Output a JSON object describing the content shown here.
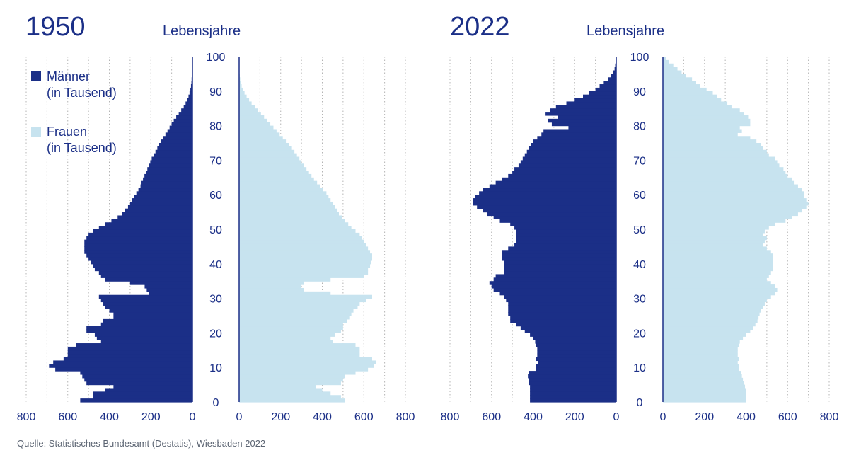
{
  "chart_data": [
    {
      "type": "bar",
      "title": "1950",
      "age_axis_label": "Lebensjahre",
      "x_unit": "in Tausend",
      "age_ticks": [
        0,
        10,
        20,
        30,
        40,
        50,
        60,
        70,
        80,
        90,
        100
      ],
      "male_ticks": [
        800,
        600,
        400,
        200,
        0
      ],
      "female_ticks": [
        0,
        200,
        400,
        600,
        800
      ],
      "xlim": [
        0,
        800
      ],
      "series": [
        {
          "name": "Männer",
          "ages": [
            0,
            1,
            2,
            3,
            4,
            5,
            6,
            7,
            8,
            9,
            10,
            11,
            12,
            13,
            14,
            15,
            16,
            17,
            18,
            19,
            20,
            21,
            22,
            23,
            24,
            25,
            26,
            27,
            28,
            29,
            30,
            31,
            32,
            33,
            34,
            35,
            36,
            37,
            38,
            39,
            40,
            41,
            42,
            43,
            44,
            45,
            46,
            47,
            48,
            49,
            50,
            51,
            52,
            53,
            54,
            55,
            56,
            57,
            58,
            59,
            60,
            61,
            62,
            63,
            64,
            65,
            66,
            67,
            68,
            69,
            70,
            71,
            72,
            73,
            74,
            75,
            76,
            77,
            78,
            79,
            80,
            81,
            82,
            83,
            84,
            85,
            86,
            87,
            88,
            89,
            90,
            91,
            92,
            93,
            94,
            95,
            96,
            97,
            98,
            99
          ],
          "values": [
            540,
            480,
            480,
            420,
            380,
            510,
            520,
            530,
            540,
            660,
            690,
            670,
            620,
            600,
            600,
            600,
            560,
            440,
            460,
            470,
            510,
            510,
            440,
            430,
            380,
            380,
            400,
            420,
            430,
            440,
            450,
            210,
            220,
            230,
            300,
            420,
            440,
            450,
            470,
            480,
            490,
            500,
            510,
            520,
            520,
            520,
            520,
            510,
            500,
            480,
            450,
            420,
            390,
            360,
            340,
            325,
            310,
            300,
            290,
            280,
            270,
            260,
            250,
            245,
            238,
            231,
            224,
            217,
            210,
            203,
            196,
            187,
            178,
            169,
            160,
            150,
            140,
            130,
            120,
            110,
            100,
            90,
            78,
            66,
            54,
            42,
            33,
            25,
            19,
            14,
            10,
            7,
            5,
            4,
            3,
            2,
            2,
            1,
            1,
            1
          ]
        },
        {
          "name": "Frauen",
          "ages": [
            0,
            1,
            2,
            3,
            4,
            5,
            6,
            7,
            8,
            9,
            10,
            11,
            12,
            13,
            14,
            15,
            16,
            17,
            18,
            19,
            20,
            21,
            22,
            23,
            24,
            25,
            26,
            27,
            28,
            29,
            30,
            31,
            32,
            33,
            34,
            35,
            36,
            37,
            38,
            39,
            40,
            41,
            42,
            43,
            44,
            45,
            46,
            47,
            48,
            49,
            50,
            51,
            52,
            53,
            54,
            55,
            56,
            57,
            58,
            59,
            60,
            61,
            62,
            63,
            64,
            65,
            66,
            67,
            68,
            69,
            70,
            71,
            72,
            73,
            74,
            75,
            76,
            77,
            78,
            79,
            80,
            81,
            82,
            83,
            84,
            85,
            86,
            87,
            88,
            89,
            90,
            91,
            92,
            93,
            94,
            95,
            96,
            97,
            98,
            99
          ],
          "values": [
            510,
            490,
            440,
            400,
            370,
            490,
            500,
            510,
            560,
            620,
            650,
            660,
            640,
            580,
            580,
            580,
            560,
            450,
            440,
            460,
            490,
            500,
            500,
            520,
            530,
            540,
            550,
            570,
            580,
            610,
            640,
            440,
            310,
            300,
            310,
            440,
            600,
            620,
            620,
            630,
            635,
            640,
            640,
            630,
            620,
            610,
            600,
            590,
            580,
            560,
            540,
            525,
            510,
            495,
            480,
            470,
            460,
            450,
            440,
            430,
            420,
            405,
            390,
            375,
            360,
            348,
            336,
            324,
            312,
            300,
            290,
            278,
            266,
            254,
            240,
            225,
            210,
            195,
            180,
            165,
            150,
            135,
            120,
            105,
            90,
            75,
            60,
            48,
            36,
            26,
            18,
            12,
            8,
            5,
            3,
            2,
            1,
            1,
            1,
            1
          ]
        }
      ]
    },
    {
      "type": "bar",
      "title": "2022",
      "age_axis_label": "Lebensjahre",
      "x_unit": "in Tausend",
      "age_ticks": [
        0,
        10,
        20,
        30,
        40,
        50,
        60,
        70,
        80,
        90,
        100
      ],
      "male_ticks": [
        800,
        600,
        400,
        200,
        0
      ],
      "female_ticks": [
        0,
        200,
        400,
        600,
        800
      ],
      "xlim": [
        0,
        800
      ],
      "series": [
        {
          "name": "Männer",
          "ages": [
            0,
            1,
            2,
            3,
            4,
            5,
            6,
            7,
            8,
            9,
            10,
            11,
            12,
            13,
            14,
            15,
            16,
            17,
            18,
            19,
            20,
            21,
            22,
            23,
            24,
            25,
            26,
            27,
            28,
            29,
            30,
            31,
            32,
            33,
            34,
            35,
            36,
            37,
            38,
            39,
            40,
            41,
            42,
            43,
            44,
            45,
            46,
            47,
            48,
            49,
            50,
            51,
            52,
            53,
            54,
            55,
            56,
            57,
            58,
            59,
            60,
            61,
            62,
            63,
            64,
            65,
            66,
            67,
            68,
            69,
            70,
            71,
            72,
            73,
            74,
            75,
            76,
            77,
            78,
            79,
            80,
            81,
            82,
            83,
            84,
            85,
            86,
            87,
            88,
            89,
            90,
            91,
            92,
            93,
            94,
            95,
            96,
            97,
            98,
            99
          ],
          "values": [
            415,
            415,
            415,
            415,
            415,
            420,
            420,
            425,
            420,
            385,
            385,
            375,
            385,
            380,
            380,
            380,
            385,
            390,
            400,
            415,
            440,
            460,
            480,
            510,
            510,
            520,
            520,
            520,
            520,
            530,
            540,
            560,
            590,
            600,
            610,
            590,
            580,
            540,
            540,
            540,
            540,
            550,
            550,
            550,
            520,
            490,
            480,
            480,
            480,
            480,
            490,
            510,
            560,
            590,
            620,
            640,
            670,
            690,
            690,
            680,
            660,
            640,
            610,
            580,
            550,
            520,
            500,
            490,
            470,
            460,
            450,
            440,
            430,
            420,
            410,
            400,
            380,
            360,
            350,
            230,
            310,
            330,
            280,
            340,
            320,
            290,
            240,
            200,
            160,
            130,
            100,
            80,
            60,
            40,
            25,
            15,
            8,
            5,
            3,
            2
          ]
        },
        {
          "name": "Frauen",
          "ages": [
            0,
            1,
            2,
            3,
            4,
            5,
            6,
            7,
            8,
            9,
            10,
            11,
            12,
            13,
            14,
            15,
            16,
            17,
            18,
            19,
            20,
            21,
            22,
            23,
            24,
            25,
            26,
            27,
            28,
            29,
            30,
            31,
            32,
            33,
            34,
            35,
            36,
            37,
            38,
            39,
            40,
            41,
            42,
            43,
            44,
            45,
            46,
            47,
            48,
            49,
            50,
            51,
            52,
            53,
            54,
            55,
            56,
            57,
            58,
            59,
            60,
            61,
            62,
            63,
            64,
            65,
            66,
            67,
            68,
            69,
            70,
            71,
            72,
            73,
            74,
            75,
            76,
            77,
            78,
            79,
            80,
            81,
            82,
            83,
            84,
            85,
            86,
            87,
            88,
            89,
            90,
            91,
            92,
            93,
            94,
            95,
            96,
            97,
            98,
            99
          ],
          "values": [
            400,
            400,
            400,
            400,
            395,
            390,
            385,
            380,
            375,
            365,
            365,
            360,
            365,
            360,
            360,
            360,
            365,
            370,
            385,
            400,
            420,
            435,
            445,
            455,
            460,
            465,
            470,
            480,
            490,
            500,
            520,
            540,
            550,
            540,
            520,
            500,
            510,
            520,
            530,
            530,
            530,
            530,
            530,
            520,
            500,
            480,
            490,
            500,
            480,
            490,
            510,
            540,
            590,
            620,
            650,
            670,
            690,
            700,
            690,
            680,
            680,
            670,
            650,
            630,
            620,
            600,
            590,
            580,
            560,
            550,
            540,
            510,
            500,
            480,
            470,
            450,
            420,
            360,
            380,
            370,
            420,
            420,
            410,
            390,
            370,
            330,
            310,
            280,
            260,
            240,
            210,
            180,
            160,
            140,
            110,
            90,
            70,
            50,
            30,
            15
          ]
        }
      ]
    }
  ],
  "legend": [
    {
      "line1": "Männer",
      "line2": "(in Tausend)",
      "color": "#1b2f87"
    },
    {
      "line1": "Frauen",
      "line2": "(in Tausend)",
      "color": "#c7e3ef"
    }
  ],
  "colors": {
    "male": "#1b2f87",
    "female": "#c7e3ef",
    "text": "#1b2f87",
    "grid": "#b4b4b4",
    "axis": "#1b2f87"
  },
  "source": "Quelle: Statistisches Bundesamt (Destatis), Wiesbaden 2022"
}
